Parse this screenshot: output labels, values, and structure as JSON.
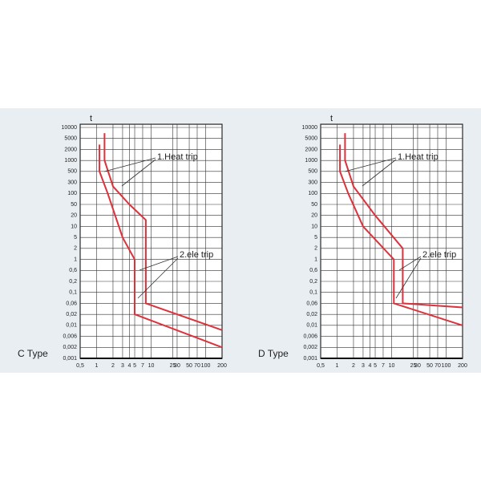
{
  "chart_data": [
    {
      "type": "line",
      "title": "C Type",
      "y_label": "t",
      "log": true,
      "annotations": [
        "1.Heat trip",
        "2.ele trip"
      ],
      "xlim": [
        0.5,
        200
      ],
      "ylim": [
        0.001,
        10000
      ],
      "xticks": [
        {
          "value": 0.5,
          "label": "0,5"
        },
        1,
        2,
        3,
        4,
        5,
        7,
        10,
        25,
        30,
        50,
        70,
        100,
        200
      ],
      "yticks": [
        10000,
        5000,
        2000,
        1000,
        500,
        300,
        100,
        50,
        20,
        10,
        5,
        2,
        1,
        {
          "value": 0.6,
          "label": "0,6"
        },
        {
          "value": 0.2,
          "label": "0,2"
        },
        {
          "value": 0.1,
          "label": "0,1"
        },
        {
          "value": 0.06,
          "label": "0,06"
        },
        {
          "value": 0.02,
          "label": "0,02"
        },
        {
          "value": 0.01,
          "label": "0,01"
        },
        {
          "value": 0.006,
          "label": "0,006"
        },
        {
          "value": 0.002,
          "label": "0,002"
        },
        {
          "value": 0.001,
          "label": "0,001"
        }
      ],
      "grid": true,
      "series": [
        {
          "color": "#e0303a",
          "x": [
            1.13,
            1.13,
            1.6,
            3,
            5,
            5,
            200
          ],
          "values": [
            3000,
            500,
            100,
            5,
            1,
            0.02,
            0.002
          ]
        },
        {
          "color": "#e0303a",
          "x": [
            1.4,
            1.4,
            2,
            4,
            8,
            8,
            200
          ],
          "values": [
            7000,
            1000,
            200,
            50,
            15,
            0.06,
            0.008
          ]
        }
      ]
    },
    {
      "type": "line",
      "title": "D Type",
      "y_label": "t",
      "log": true,
      "annotations": [
        "1.Heat trip",
        "2.ele trip"
      ],
      "xlim": [
        0.5,
        200
      ],
      "ylim": [
        0.001,
        10000
      ],
      "xticks": [
        {
          "value": 0.5,
          "label": "0,5"
        },
        1,
        2,
        3,
        4,
        5,
        7,
        10,
        25,
        30,
        50,
        70,
        100,
        200
      ],
      "yticks": [
        10000,
        5000,
        2000,
        1000,
        500,
        300,
        100,
        50,
        20,
        10,
        5,
        2,
        1,
        {
          "value": 0.6,
          "label": "0,6"
        },
        {
          "value": 0.2,
          "label": "0,2"
        },
        {
          "value": 0.1,
          "label": "0,1"
        },
        {
          "value": 0.06,
          "label": "0,06"
        },
        {
          "value": 0.02,
          "label": "0,02"
        },
        {
          "value": 0.01,
          "label": "0,01"
        },
        {
          "value": 0.006,
          "label": "0,006"
        },
        {
          "value": 0.002,
          "label": "0,002"
        },
        {
          "value": 0.001,
          "label": "0,001"
        }
      ],
      "grid": true,
      "series": [
        {
          "color": "#e0303a",
          "x": [
            1.13,
            1.13,
            1.6,
            3,
            11,
            11,
            200
          ],
          "values": [
            3000,
            500,
            100,
            10,
            1,
            0.06,
            0.01
          ]
        },
        {
          "color": "#e0303a",
          "x": [
            1.4,
            1.4,
            2,
            5,
            16,
            16,
            200
          ],
          "values": [
            7000,
            1000,
            200,
            20,
            2,
            0.06,
            0.04
          ]
        }
      ]
    }
  ]
}
